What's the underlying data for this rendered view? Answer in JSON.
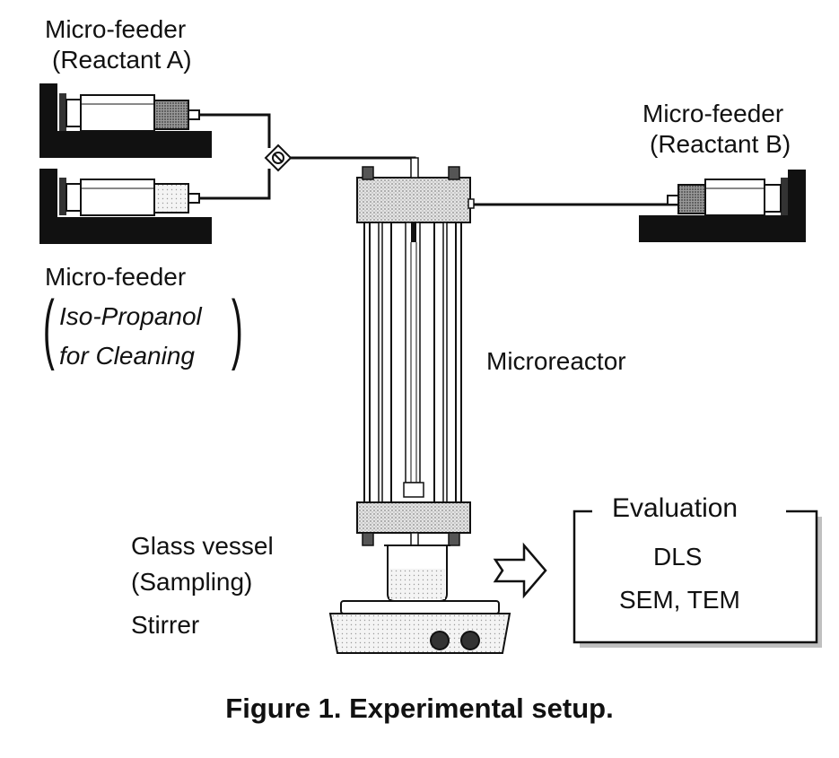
{
  "labels": {
    "feeder_a_title": "Micro-feeder",
    "feeder_a_sub": "(Reactant A)",
    "feeder_b_title": "Micro-feeder",
    "feeder_b_sub": "(Reactant B)",
    "feeder_c_title": "Micro-feeder",
    "feeder_c_line1": "Iso-Propanol",
    "feeder_c_line2": "for Cleaning",
    "microreactor": "Microreactor",
    "glass_vessel": "Glass vessel",
    "sampling": "(Sampling)",
    "stirrer": "Stirrer"
  },
  "evaluation": {
    "title": "Evaluation",
    "line1": "DLS",
    "line2": "SEM, TEM"
  },
  "caption": "Figure 1.  Experimental setup."
}
